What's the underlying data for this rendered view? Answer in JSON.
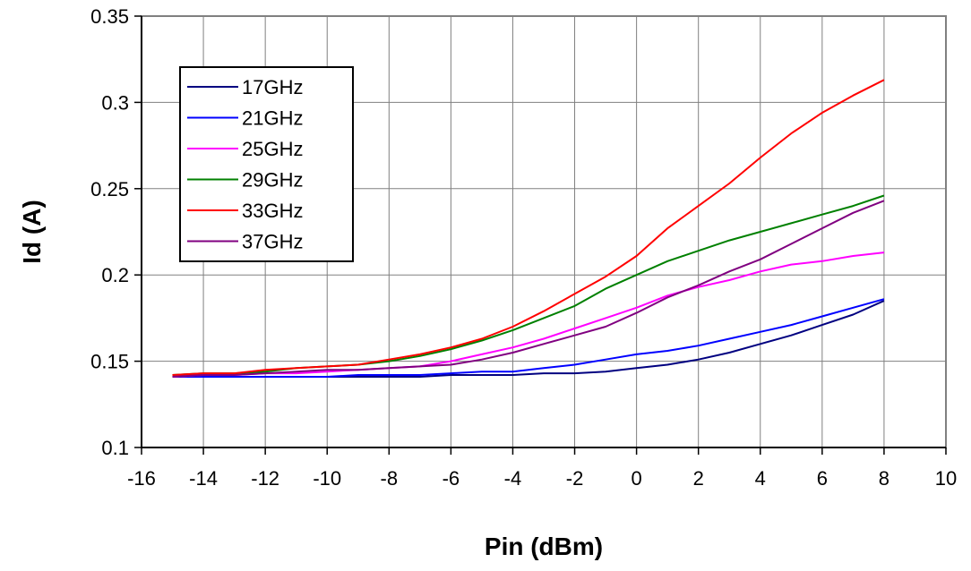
{
  "chart_data": {
    "type": "line",
    "title": "",
    "xlabel": "Pin (dBm)",
    "ylabel": "Id (A)",
    "xlim": [
      -16,
      10
    ],
    "ylim": [
      0.1,
      0.35
    ],
    "x_ticks": [
      "-16",
      "-14",
      "-12",
      "-10",
      "-8",
      "-6",
      "-4",
      "-2",
      "0",
      "2",
      "4",
      "6",
      "8",
      "10"
    ],
    "y_ticks": [
      "0.1",
      "0.15",
      "0.2",
      "0.25",
      "0.3",
      "0.35"
    ],
    "grid": true,
    "legend_position": "top-left",
    "x": [
      -15,
      -14,
      -13,
      -12,
      -11,
      -10,
      -9,
      -8,
      -7,
      -6,
      -5,
      -4,
      -3,
      -2,
      -1,
      0,
      1,
      2,
      3,
      4,
      5,
      6,
      7,
      8
    ],
    "series": [
      {
        "name": "17GHz",
        "color": "#000080",
        "values": [
          0.141,
          0.141,
          0.141,
          0.141,
          0.141,
          0.141,
          0.141,
          0.141,
          0.141,
          0.142,
          0.142,
          0.142,
          0.143,
          0.143,
          0.144,
          0.146,
          0.148,
          0.151,
          0.155,
          0.16,
          0.165,
          0.171,
          0.177,
          0.185
        ]
      },
      {
        "name": "21GHz",
        "color": "#0000FF",
        "values": [
          0.141,
          0.141,
          0.141,
          0.141,
          0.141,
          0.141,
          0.142,
          0.142,
          0.142,
          0.143,
          0.144,
          0.144,
          0.146,
          0.148,
          0.151,
          0.154,
          0.156,
          0.159,
          0.163,
          0.167,
          0.171,
          0.176,
          0.181,
          0.186
        ]
      },
      {
        "name": "25GHz",
        "color": "#FF00FF",
        "values": [
          0.141,
          0.142,
          0.142,
          0.143,
          0.143,
          0.144,
          0.145,
          0.146,
          0.147,
          0.15,
          0.154,
          0.158,
          0.163,
          0.169,
          0.175,
          0.181,
          0.188,
          0.193,
          0.197,
          0.202,
          0.206,
          0.208,
          0.211,
          0.213
        ]
      },
      {
        "name": "29GHz",
        "color": "#008000",
        "values": [
          0.142,
          0.143,
          0.143,
          0.144,
          0.146,
          0.147,
          0.148,
          0.15,
          0.153,
          0.157,
          0.162,
          0.168,
          0.175,
          0.182,
          0.192,
          0.2,
          0.208,
          0.214,
          0.22,
          0.225,
          0.23,
          0.235,
          0.24,
          0.246
        ]
      },
      {
        "name": "33GHz",
        "color": "#FF0000",
        "values": [
          0.142,
          0.143,
          0.143,
          0.145,
          0.146,
          0.147,
          0.148,
          0.151,
          0.154,
          0.158,
          0.163,
          0.17,
          0.179,
          0.189,
          0.199,
          0.211,
          0.227,
          0.24,
          0.253,
          0.268,
          0.282,
          0.294,
          0.304,
          0.313
        ]
      },
      {
        "name": "37GHz",
        "color": "#800080",
        "values": [
          0.141,
          0.142,
          0.142,
          0.143,
          0.144,
          0.145,
          0.145,
          0.146,
          0.147,
          0.148,
          0.151,
          0.155,
          0.16,
          0.165,
          0.17,
          0.178,
          0.187,
          0.194,
          0.202,
          0.209,
          0.218,
          0.227,
          0.236,
          0.243
        ]
      }
    ]
  }
}
